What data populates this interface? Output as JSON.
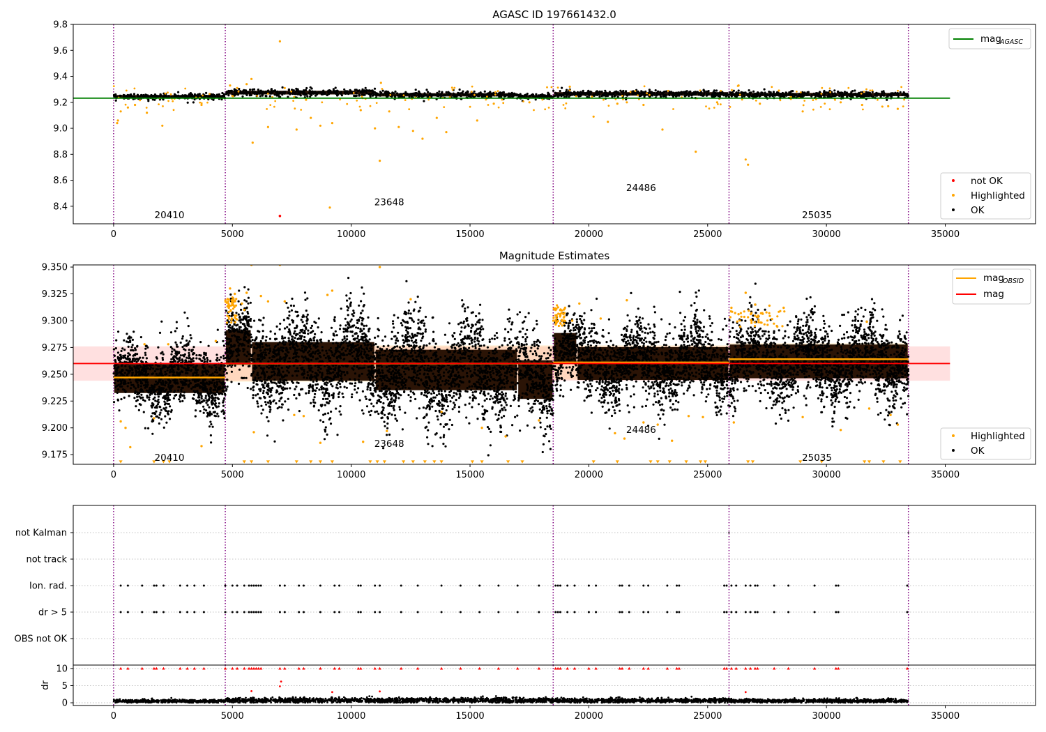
{
  "chart_data": [
    {
      "type": "scatter",
      "title": "AGASC ID 197661432.0",
      "xlim": [
        -1700,
        38800
      ],
      "ylim": [
        8.265,
        9.8
      ],
      "xticks": [
        0,
        5000,
        10000,
        15000,
        20000,
        25000,
        30000,
        35000
      ],
      "yticks": [
        8.4,
        8.6,
        8.8,
        9.0,
        9.2,
        9.4,
        9.6,
        9.8
      ],
      "obs_boundaries": [
        0,
        4700,
        18500,
        25900,
        33450
      ],
      "obs_labels": [
        {
          "text": "20410",
          "x": 2350,
          "y": 8.33
        },
        {
          "text": "23648",
          "x": 11600,
          "y": 8.43
        },
        {
          "text": "24486",
          "x": 22200,
          "y": 8.54
        },
        {
          "text": "25035",
          "x": 29600,
          "y": 8.33
        }
      ],
      "legend_top": [
        {
          "name": "mag",
          "sub": "AGASC",
          "color": "#008000"
        }
      ],
      "legend_bottom": [
        {
          "name": "not OK",
          "color": "#ff0000"
        },
        {
          "name": "Highlighted",
          "color": "#ffa500"
        },
        {
          "name": "OK",
          "color": "#000000"
        }
      ],
      "reference_line": {
        "name": "mag_AGASC",
        "value": 9.232,
        "x": [
          -1700,
          35200
        ],
        "color": "#008000"
      },
      "ok_band_segments": [
        {
          "x": [
            0,
            4700
          ],
          "center": 9.245,
          "half": 0.025
        },
        {
          "x": [
            4700,
            11000
          ],
          "center": 9.275,
          "half": 0.032
        },
        {
          "x": [
            11000,
            17000
          ],
          "center": 9.258,
          "half": 0.028
        },
        {
          "x": [
            17000,
            18500
          ],
          "center": 9.245,
          "half": 0.025
        },
        {
          "x": [
            18500,
            25900
          ],
          "center": 9.265,
          "half": 0.03
        },
        {
          "x": [
            25900,
            33450
          ],
          "center": 9.26,
          "half": 0.028
        }
      ],
      "highlighted_points": [
        [
          150,
          9.04
        ],
        [
          180,
          9.06
        ],
        [
          300,
          9.13
        ],
        [
          600,
          9.16
        ],
        [
          900,
          9.18
        ],
        [
          1400,
          9.12
        ],
        [
          2050,
          9.02
        ],
        [
          3700,
          9.18
        ],
        [
          4900,
          9.33
        ],
        [
          5200,
          9.31
        ],
        [
          5600,
          9.34
        ],
        [
          5800,
          9.38
        ],
        [
          5850,
          8.89
        ],
        [
          6500,
          9.01
        ],
        [
          7000,
          9.67
        ],
        [
          7200,
          9.31
        ],
        [
          7700,
          8.99
        ],
        [
          8100,
          9.22
        ],
        [
          8300,
          9.08
        ],
        [
          8700,
          9.02
        ],
        [
          9100,
          8.39
        ],
        [
          9200,
          9.04
        ],
        [
          10400,
          9.14
        ],
        [
          11000,
          9.0
        ],
        [
          11200,
          8.75
        ],
        [
          11250,
          9.35
        ],
        [
          11600,
          9.13
        ],
        [
          12000,
          9.01
        ],
        [
          12600,
          8.98
        ],
        [
          13000,
          8.92
        ],
        [
          13600,
          9.08
        ],
        [
          14000,
          8.97
        ],
        [
          15300,
          9.06
        ],
        [
          16000,
          9.19
        ],
        [
          17500,
          9.2
        ],
        [
          19200,
          9.32
        ],
        [
          20200,
          9.09
        ],
        [
          20800,
          9.05
        ],
        [
          21200,
          9.19
        ],
        [
          21600,
          9.2
        ],
        [
          22300,
          9.18
        ],
        [
          23100,
          8.99
        ],
        [
          24500,
          8.82
        ],
        [
          25400,
          9.2
        ],
        [
          26300,
          9.33
        ],
        [
          26600,
          8.76
        ],
        [
          26700,
          8.72
        ],
        [
          27200,
          9.19
        ],
        [
          28000,
          9.29
        ],
        [
          29000,
          9.13
        ],
        [
          30600,
          9.2
        ],
        [
          31500,
          9.18
        ],
        [
          32600,
          9.17
        ],
        [
          33000,
          9.15
        ]
      ],
      "not_ok_points": [
        [
          7000,
          8.325
        ]
      ]
    },
    {
      "type": "scatter",
      "title": "Magnitude Estimates",
      "xlim": [
        -1700,
        38800
      ],
      "ylim": [
        9.166,
        9.352
      ],
      "xticks": [
        0,
        5000,
        10000,
        15000,
        20000,
        25000,
        30000,
        35000
      ],
      "yticks": [
        9.175,
        9.2,
        9.225,
        9.25,
        9.275,
        9.3,
        9.325,
        9.35
      ],
      "obs_boundaries": [
        0,
        4700,
        18500,
        25900,
        33450
      ],
      "obs_labels": [
        {
          "text": "20410",
          "x": 2350,
          "y": 9.172
        },
        {
          "text": "23648",
          "x": 11600,
          "y": 9.185
        },
        {
          "text": "24486",
          "x": 22200,
          "y": 9.198
        },
        {
          "text": "25035",
          "x": 29600,
          "y": 9.172
        }
      ],
      "legend_top": [
        {
          "name": "mag",
          "sub": "OBSID",
          "color": "#ffa500"
        },
        {
          "name": "mag",
          "sub": "",
          "color": "#ff0000"
        }
      ],
      "legend_bottom": [
        {
          "name": "Highlighted",
          "color": "#ffa500"
        },
        {
          "name": "OK",
          "color": "#000000"
        }
      ],
      "mag_line": {
        "value": 9.26,
        "x": [
          -1700,
          35200
        ],
        "band": [
          9.244,
          9.276
        ],
        "color": "#ff0000"
      },
      "mag_obsid_segments": [
        {
          "x": [
            0,
            4700
          ],
          "value": 9.247,
          "band": [
            9.24,
            9.256
          ]
        },
        {
          "x": [
            4700,
            18500
          ],
          "value": 9.26,
          "band": [
            9.243,
            9.277
          ]
        },
        {
          "x": [
            18500,
            25900
          ],
          "value": 9.261,
          "band": [
            9.245,
            9.277
          ]
        },
        {
          "x": [
            25900,
            33450
          ],
          "value": 9.264,
          "band": [
            9.249,
            9.279
          ]
        }
      ],
      "ok_band_segments": [
        {
          "x": [
            0,
            4700
          ],
          "center": 9.246,
          "half": 0.03
        },
        {
          "x": [
            4700,
            5800
          ],
          "center": 9.275,
          "half": 0.036
        },
        {
          "x": [
            5800,
            11000
          ],
          "center": 9.262,
          "half": 0.04
        },
        {
          "x": [
            11000,
            17000
          ],
          "center": 9.254,
          "half": 0.042
        },
        {
          "x": [
            17000,
            18500
          ],
          "center": 9.245,
          "half": 0.04
        },
        {
          "x": [
            18500,
            19500
          ],
          "center": 9.275,
          "half": 0.03
        },
        {
          "x": [
            19500,
            25900
          ],
          "center": 9.26,
          "half": 0.034
        },
        {
          "x": [
            25900,
            33450
          ],
          "center": 9.262,
          "half": 0.035
        }
      ],
      "highlighted_points": [
        [
          300,
          9.206
        ],
        [
          500,
          9.2
        ],
        [
          700,
          9.182
        ],
        [
          1300,
          9.278
        ],
        [
          1700,
          9.209
        ],
        [
          2300,
          9.278
        ],
        [
          3700,
          9.183
        ],
        [
          4300,
          9.281
        ],
        [
          4800,
          9.32
        ],
        [
          4900,
          9.33
        ],
        [
          5000,
          9.315
        ],
        [
          5100,
          9.325
        ],
        [
          5400,
          9.316
        ],
        [
          5500,
          9.31
        ],
        [
          5600,
          9.326
        ],
        [
          5800,
          9.352
        ],
        [
          5900,
          9.196
        ],
        [
          6200,
          9.323
        ],
        [
          6500,
          9.318
        ],
        [
          7000,
          9.352
        ],
        [
          7200,
          9.318
        ],
        [
          7600,
          9.212
        ],
        [
          8000,
          9.211
        ],
        [
          8700,
          9.186
        ],
        [
          9000,
          9.324
        ],
        [
          9200,
          9.328
        ],
        [
          10500,
          9.187
        ],
        [
          11200,
          9.35
        ],
        [
          11500,
          9.197
        ],
        [
          12500,
          9.32
        ],
        [
          13800,
          9.215
        ],
        [
          15500,
          9.2
        ],
        [
          16500,
          9.192
        ],
        [
          17900,
          9.207
        ],
        [
          18600,
          9.31
        ],
        [
          18800,
          9.305
        ],
        [
          19000,
          9.312
        ],
        [
          19300,
          9.3
        ],
        [
          19600,
          9.316
        ],
        [
          20500,
          9.302
        ],
        [
          21100,
          9.195
        ],
        [
          21500,
          9.19
        ],
        [
          21600,
          9.319
        ],
        [
          22300,
          9.205
        ],
        [
          22900,
          9.203
        ],
        [
          23500,
          9.188
        ],
        [
          24200,
          9.211
        ],
        [
          24800,
          9.21
        ],
        [
          26000,
          9.312
        ],
        [
          26100,
          9.205
        ],
        [
          26300,
          9.306
        ],
        [
          26600,
          9.326
        ],
        [
          27000,
          9.315
        ],
        [
          27300,
          9.307
        ],
        [
          27600,
          9.314
        ],
        [
          28200,
          9.312
        ],
        [
          29000,
          9.21
        ],
        [
          30600,
          9.198
        ],
        [
          31700,
          9.299
        ],
        [
          31800,
          9.218
        ],
        [
          32700,
          9.212
        ],
        [
          33000,
          9.203
        ]
      ],
      "clipped_low_markers": [
        300,
        2100,
        1700,
        2350,
        5500,
        5800,
        6500,
        7700,
        8300,
        8700,
        9200,
        10800,
        11100,
        11400,
        12200,
        12600,
        13100,
        13500,
        13800,
        15100,
        15500,
        16600,
        17200,
        20200,
        21200,
        22600,
        22900,
        23400,
        24100,
        24700,
        24900,
        26700,
        26900,
        28900,
        29800,
        31600,
        31800,
        32400,
        33100
      ]
    },
    {
      "type": "scatter",
      "title": "",
      "categories": [
        "not Kalman",
        "not track",
        "Ion. rad.",
        "dr > 5",
        "OBS not OK"
      ],
      "xlim": [
        -1700,
        38800
      ],
      "obs_boundaries": [
        0,
        4700,
        18500,
        25900,
        33450
      ],
      "flag_times": [
        300,
        600,
        1200,
        1700,
        1800,
        2100,
        2800,
        3100,
        3400,
        3800,
        4700,
        5000,
        5200,
        5500,
        5700,
        5800,
        5900,
        6000,
        6100,
        6200,
        7000,
        7200,
        7800,
        8000,
        8700,
        9300,
        9500,
        10300,
        10400,
        11000,
        11200,
        12100,
        12800,
        13800,
        14600,
        15400,
        16200,
        17000,
        17900,
        18600,
        18700,
        18800,
        19100,
        19400,
        20000,
        20300,
        21300,
        21400,
        21700,
        22300,
        22500,
        23300,
        23700,
        23800,
        25700,
        25800,
        26000,
        26200,
        26600,
        26800,
        27000,
        27100,
        27800,
        28400,
        29500,
        30400,
        30500,
        33400
      ],
      "not_kalman_times": [
        25900,
        33450
      ]
    },
    {
      "type": "scatter",
      "title": "",
      "ylabel": "dr",
      "xlim": [
        -1700,
        38800
      ],
      "ylim": [
        -0.8,
        11
      ],
      "yticks": [
        0,
        5,
        10
      ],
      "xticks": [
        0,
        5000,
        10000,
        15000,
        20000,
        25000,
        30000,
        35000
      ],
      "obs_boundaries": [
        0,
        4700,
        18500,
        25900,
        33450
      ],
      "dr_noise_segments": [
        {
          "x": [
            0,
            4700
          ],
          "mean": 0.45,
          "spread": 0.45
        },
        {
          "x": [
            4700,
            18500
          ],
          "mean": 0.7,
          "spread": 0.7
        },
        {
          "x": [
            18500,
            25900
          ],
          "mean": 0.65,
          "spread": 0.6
        },
        {
          "x": [
            25900,
            33450
          ],
          "mean": 0.55,
          "spread": 0.5
        }
      ],
      "outlier_points": [
        [
          5800,
          3.4
        ],
        [
          7000,
          4.8
        ],
        [
          7050,
          6.2
        ],
        [
          9200,
          3.1
        ],
        [
          11200,
          3.3
        ],
        [
          26600,
          3.1
        ]
      ],
      "clipped_high_times": [
        300,
        600,
        1200,
        1700,
        1800,
        2100,
        2800,
        3100,
        3400,
        3800,
        4700,
        5000,
        5200,
        5500,
        5700,
        5800,
        5900,
        6000,
        6100,
        6200,
        7000,
        7200,
        7800,
        8000,
        8700,
        9300,
        9500,
        10300,
        10400,
        11000,
        11200,
        12100,
        12800,
        13800,
        14600,
        15400,
        16200,
        17000,
        17900,
        18600,
        18700,
        18800,
        19100,
        19400,
        20000,
        20300,
        21300,
        21400,
        21700,
        22300,
        22500,
        23300,
        23700,
        23800,
        25700,
        25800,
        26000,
        26200,
        26600,
        26800,
        27000,
        27100,
        27800,
        28400,
        29500,
        30400,
        30500,
        33400
      ]
    }
  ]
}
